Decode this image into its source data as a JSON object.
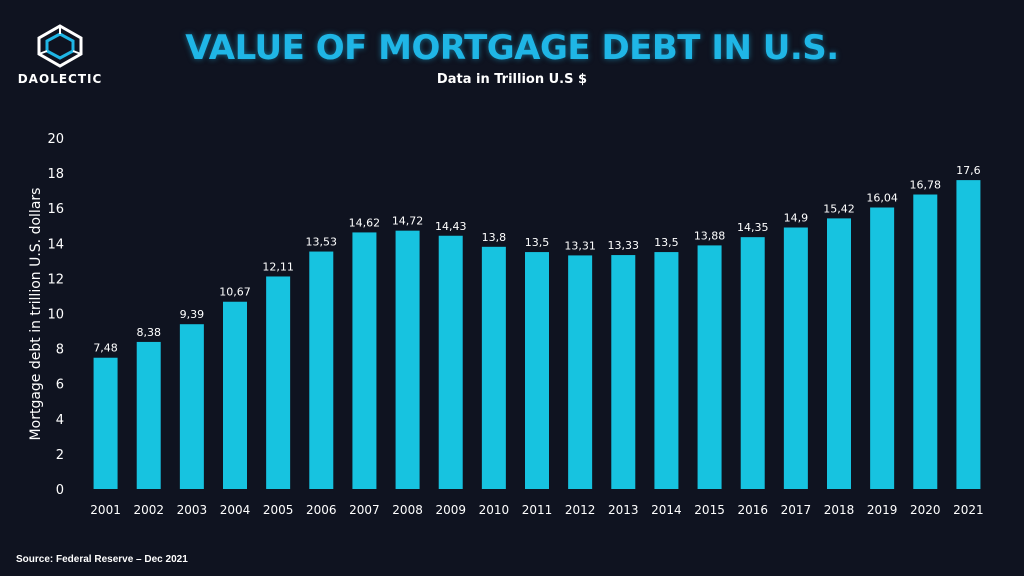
{
  "brand": {
    "name": "DAOLECTIC"
  },
  "header": {
    "title": "VALUE OF MORTGAGE DEBT IN U.S.",
    "subtitle": "Data in Trillion U.S $"
  },
  "footer": {
    "source": "Source: Federal Reserve – Dec 2021"
  },
  "colors": {
    "background": "#0f1320",
    "bar": "#17c3e0",
    "title": "#1fb6e6"
  },
  "chart_data": {
    "type": "bar",
    "title": "VALUE OF MORTGAGE DEBT IN U.S.",
    "xlabel": "",
    "ylabel": "Mortgage debt in trillion U.S. dollars",
    "ylim": [
      0,
      20
    ],
    "yticks": [
      "0",
      "2",
      "4",
      "6",
      "8",
      "10",
      "12",
      "14",
      "16",
      "18",
      "20"
    ],
    "grid": false,
    "categories": [
      "2001",
      "2002",
      "2003",
      "2004",
      "2005",
      "2006",
      "2007",
      "2008",
      "2009",
      "2010",
      "2011",
      "2012",
      "2013",
      "2014",
      "2015",
      "2016",
      "2017",
      "2018",
      "2019",
      "2020",
      "2021"
    ],
    "values": [
      7.48,
      8.38,
      9.39,
      10.67,
      12.11,
      13.53,
      14.62,
      14.72,
      14.43,
      13.8,
      13.5,
      13.31,
      13.33,
      13.5,
      13.88,
      14.35,
      14.9,
      15.42,
      16.04,
      16.78,
      17.6
    ],
    "value_labels": [
      "7,48",
      "8,38",
      "9,39",
      "10,67",
      "12,11",
      "13,53",
      "14,62",
      "14,72",
      "14,43",
      "13,8",
      "13,5",
      "13,31",
      "13,33",
      "13,5",
      "13,88",
      "14,35",
      "14,9",
      "15,42",
      "16,04",
      "16,78",
      "17,6"
    ]
  }
}
